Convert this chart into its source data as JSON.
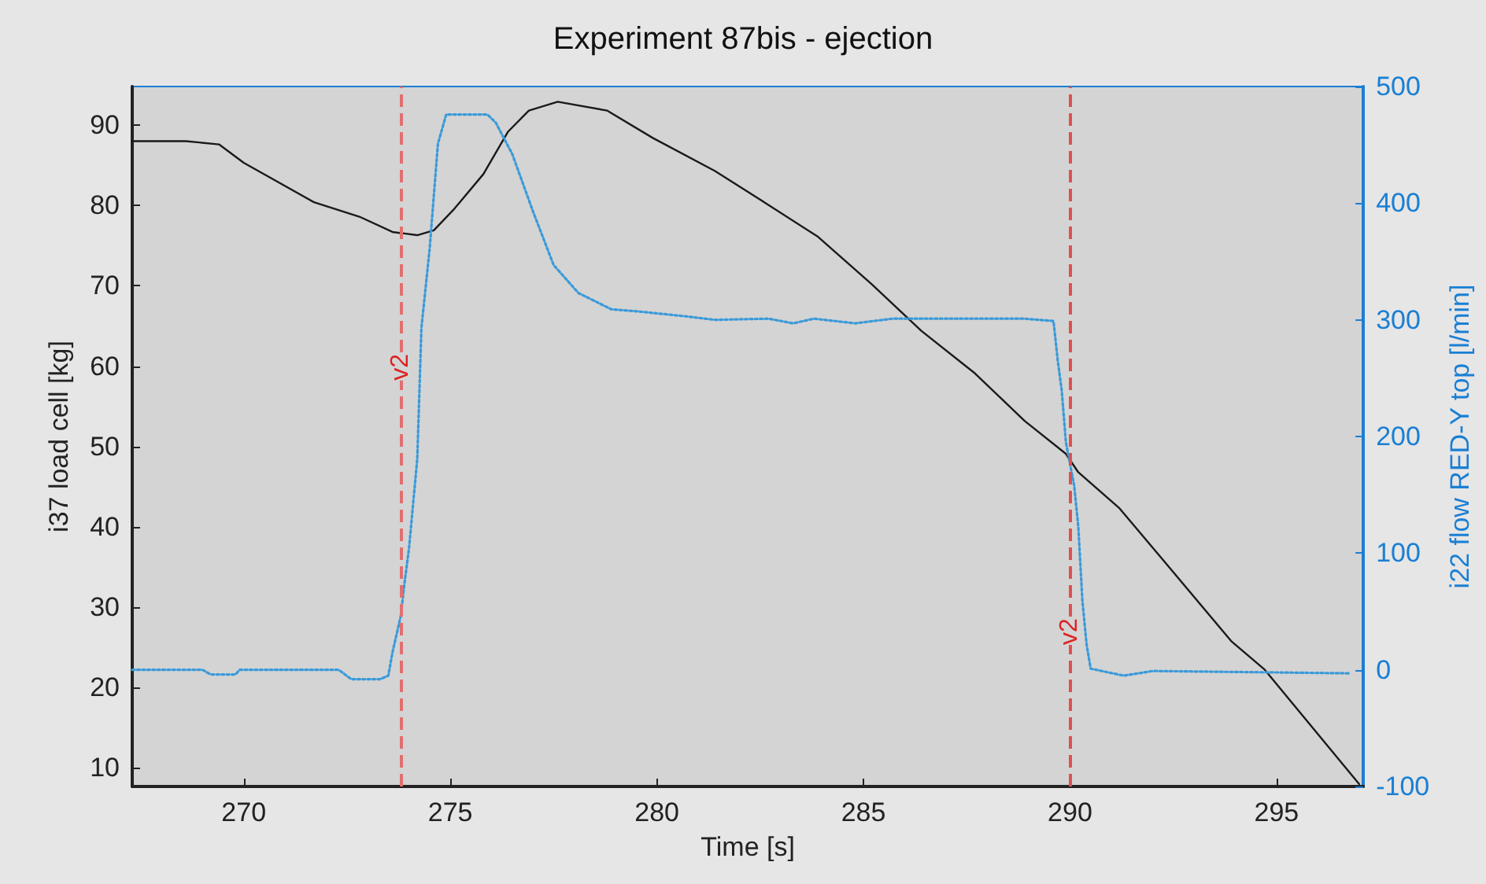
{
  "chart_data": {
    "type": "line",
    "title": "Experiment 87bis - ejection",
    "xlabel": "Time [s]",
    "ylabel": "i37 load cell [kg]",
    "y2label": "i22 flow RED-Y top [l/min]",
    "xlim": [
      267.3,
      297.1
    ],
    "xticks": [
      270,
      275,
      280,
      285,
      290,
      295
    ],
    "ylim": [
      7.7,
      94.8
    ],
    "yticks": [
      10,
      20,
      30,
      40,
      50,
      60,
      70,
      80,
      90
    ],
    "y2lim": [
      -100,
      500
    ],
    "y2ticks": [
      -100,
      0,
      100,
      200,
      300,
      400,
      500
    ],
    "grid": false,
    "marker": "none",
    "ref_lines": [
      {
        "axis": "x",
        "value": 273.8,
        "label": "v2",
        "color": "#e07070",
        "line_style": "dashed"
      },
      {
        "axis": "x",
        "value": 290,
        "label": "v2",
        "color": "#e05050",
        "line_style": "dashed"
      }
    ],
    "series": [
      {
        "color": "#1a1a1a",
        "line_style": "solid",
        "x": [
          267.3,
          268.6,
          269.4,
          270,
          271.7,
          272.8,
          273.6,
          274.2,
          274.6,
          275.1,
          275.8,
          276.4,
          276.9,
          277.6,
          278.8,
          279.9,
          281.4,
          282.6,
          283.9,
          285.2,
          286.4,
          287.7,
          288.9,
          289.9,
          290.2,
          291.2,
          292.3,
          293.9,
          294.7,
          297.0
        ],
        "values": [
          88,
          88,
          87.6,
          85.3,
          80.4,
          78.6,
          76.7,
          76.3,
          76.9,
          79.6,
          83.9,
          89.2,
          91.8,
          92.9,
          91.8,
          88.4,
          84.3,
          80.4,
          76.1,
          70.2,
          64.4,
          59.1,
          53.2,
          49.1,
          46.8,
          42.3,
          35.6,
          25.8,
          22.3,
          8
        ]
      },
      {
        "color": "#3a9ad9",
        "line_style": "dotted",
        "axis": "y2",
        "x": [
          267.3,
          269.0,
          269.2,
          269.8,
          269.9,
          272.3,
          272.6,
          273.3,
          273.5,
          273.6,
          273.8,
          273.9,
          274.0,
          274.2,
          274.3,
          274.5,
          274.7,
          274.9,
          275.9,
          276.1,
          276.5,
          277.0,
          277.5,
          278.1,
          278.9,
          279.6,
          280.7,
          281.4,
          282.7,
          283.3,
          283.8,
          284.8,
          285.7,
          288.9,
          289.6,
          289.7,
          289.8,
          289.9,
          290.1,
          290.2,
          290.3,
          290.4,
          290.5,
          291.3,
          292.0,
          296.8
        ],
        "values": [
          0,
          0,
          -4,
          -4,
          0,
          0,
          -8,
          -8,
          -5,
          15,
          46,
          77,
          104,
          181,
          293,
          361,
          451,
          476,
          476,
          469,
          442,
          393,
          347,
          323,
          309,
          307,
          303,
          300,
          301,
          297,
          301,
          297,
          301,
          301,
          299,
          266,
          239,
          195,
          158,
          123,
          59,
          22,
          1,
          -5,
          -1,
          -3
        ]
      }
    ]
  }
}
